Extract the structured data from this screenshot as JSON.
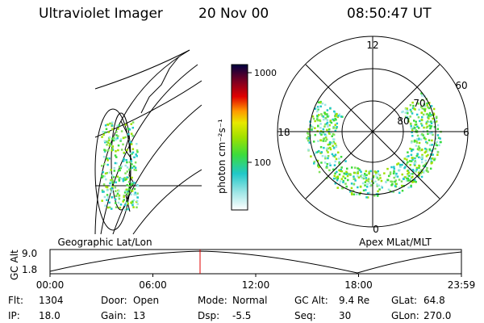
{
  "header": {
    "title": "Ultraviolet Imager",
    "date": "20 Nov 00",
    "time": "08:50:47 UT"
  },
  "colorbar": {
    "label": "photon cm⁻²s⁻¹",
    "ticks": [
      "1000",
      "100"
    ]
  },
  "polar": {
    "hours": [
      "12",
      "18",
      "6",
      "0"
    ],
    "latitudes": [
      "60",
      "70",
      "80"
    ]
  },
  "timeline": {
    "left_title": "Geographic Lat/Lon",
    "right_title": "Apex MLat/MLT",
    "axis_label": "GC Alt",
    "y_labels": [
      "9.0",
      "1.8"
    ],
    "times": [
      "00:00",
      "06:00",
      "12:00",
      "18:00",
      "23:59"
    ]
  },
  "info": {
    "rows": [
      [
        {
          "label": "Flt:",
          "value": "1304"
        },
        {
          "label": "Door:",
          "value": "Open"
        },
        {
          "label": "Mode:",
          "value": "Normal"
        },
        {
          "label": "GC Alt:",
          "value": "9.4 Re"
        },
        {
          "label": "GLat:",
          "value": "64.8"
        }
      ],
      [
        {
          "label": "IP:",
          "value": "18.0"
        },
        {
          "label": "Gain:",
          "value": "13"
        },
        {
          "label": "Dsp:",
          "value": "-5.5"
        },
        {
          "label": "Seq:",
          "value": "30"
        },
        {
          "label": "GLon:",
          "value": "270.0"
        }
      ]
    ]
  }
}
